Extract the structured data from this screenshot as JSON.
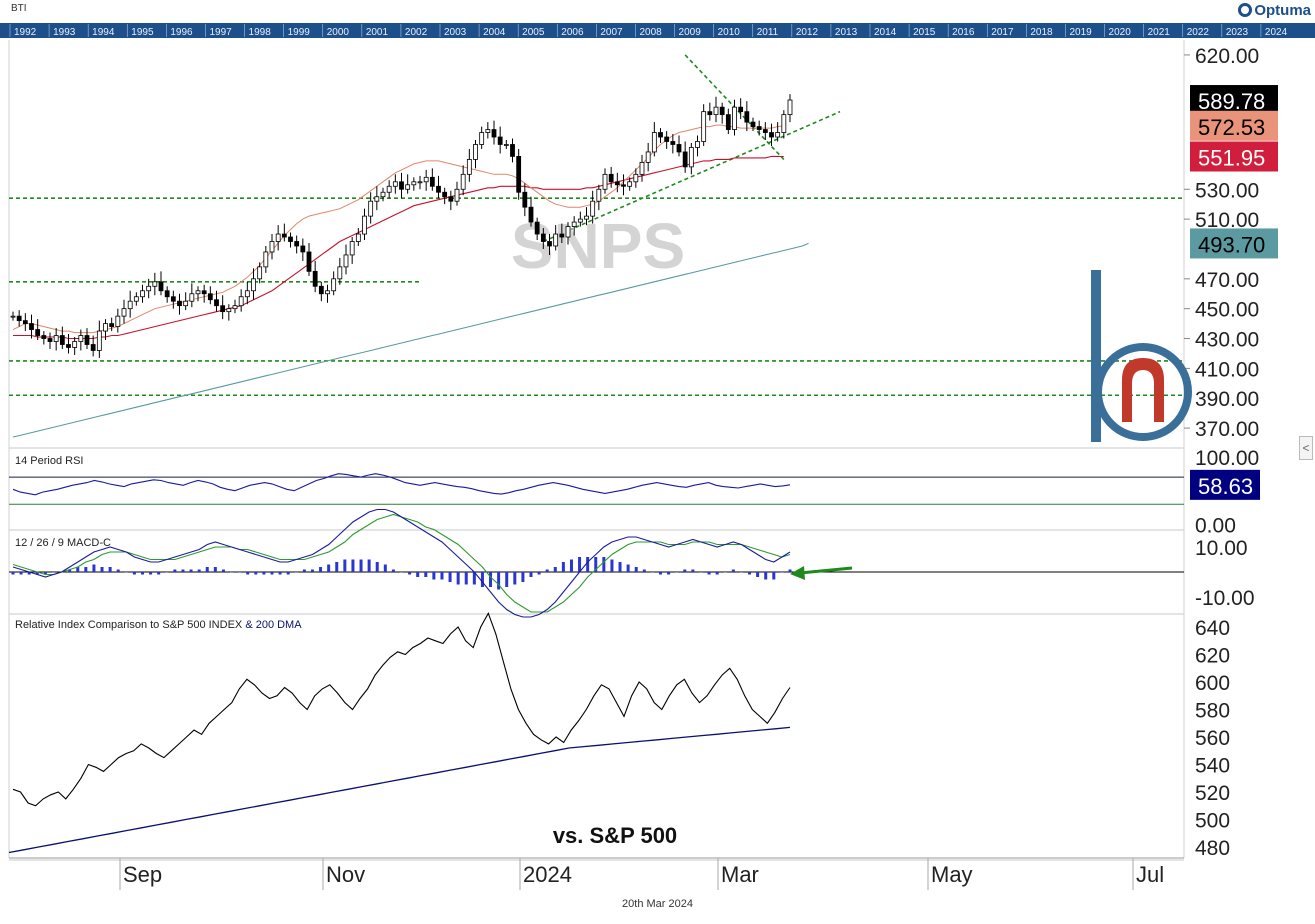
{
  "top_label": "BTI",
  "brand": "Optuma",
  "timeline_years": [
    "1992",
    "1993",
    "1994",
    "1995",
    "1996",
    "1997",
    "1998",
    "1999",
    "2000",
    "2001",
    "2002",
    "2003",
    "2004",
    "2005",
    "2006",
    "2007",
    "2008",
    "2009",
    "2010",
    "2011",
    "2012",
    "2013",
    "2014",
    "2015",
    "2016",
    "2017",
    "2018",
    "2019",
    "2020",
    "2021",
    "2022",
    "2023",
    "2024"
  ],
  "footer_date": "20th Mar 2024",
  "watermark": "SNPS",
  "colors": {
    "timeline_bg": "#1d4f8a",
    "sma50": "#e0866a",
    "sma100": "#c8102e",
    "sma200": "#5a9aa0",
    "trend": "#1e8a1e",
    "rsi_line": "#1a1aa0",
    "macd_line": "#1a1aa0",
    "signal_line": "#2e9a2e",
    "hist": "#2a36d0",
    "rel_line": "#000000",
    "rel_ma": "#0a1070",
    "logo_blue": "#3a6f99",
    "logo_red": "#c0392b"
  },
  "chart_data": [
    {
      "type": "candlestick",
      "title": "SNPS",
      "y_ticks": [
        "620.00",
        "530.00",
        "510.00",
        "470.00",
        "450.00",
        "430.00",
        "410.00",
        "390.00",
        "370.00"
      ],
      "y_tick_values": [
        620,
        530,
        510,
        470,
        450,
        430,
        410,
        390,
        370
      ],
      "value_tags": [
        {
          "label": "589.78",
          "value": 589.78,
          "bg": "#000000",
          "fg": "#ffffff",
          "series": "close"
        },
        {
          "label": "572.53",
          "value": 572.53,
          "bg": "#e8937a",
          "fg": "#000000",
          "series": "sma50"
        },
        {
          "label": "551.95",
          "value": 551.95,
          "bg": "#d01e3c",
          "fg": "#ffffff",
          "series": "sma100"
        },
        {
          "label": "493.70",
          "value": 493.7,
          "bg": "#5a9aa0",
          "fg": "#000000",
          "series": "sma200"
        }
      ],
      "close": [
        445,
        442,
        440,
        436,
        432,
        430,
        428,
        432,
        426,
        424,
        428,
        432,
        426,
        422,
        435,
        440,
        438,
        445,
        450,
        455,
        458,
        462,
        465,
        468,
        462,
        458,
        455,
        452,
        455,
        460,
        462,
        460,
        456,
        452,
        448,
        450,
        452,
        458,
        462,
        470,
        478,
        488,
        495,
        500,
        498,
        495,
        492,
        488,
        475,
        465,
        460,
        462,
        470,
        478,
        486,
        495,
        500,
        512,
        522,
        525,
        528,
        532,
        535,
        530,
        533,
        535,
        535,
        538,
        532,
        528,
        525,
        522,
        530,
        540,
        550,
        560,
        568,
        570,
        565,
        560,
        560,
        552,
        528,
        518,
        508,
        500,
        495,
        492,
        500,
        498,
        505,
        508,
        510,
        512,
        522,
        530,
        540,
        535,
        533,
        532,
        535,
        540,
        548,
        555,
        568,
        565,
        562,
        560,
        555,
        545,
        558,
        562,
        582,
        580,
        585,
        580,
        570,
        585,
        582,
        575,
        572,
        570,
        568,
        565,
        568,
        580,
        589.78
      ],
      "sma50": [
        436,
        438,
        440,
        440,
        439,
        438,
        437,
        436,
        435,
        435,
        434,
        434,
        434,
        434,
        435,
        436,
        437,
        438,
        440,
        442,
        444,
        446,
        448,
        450,
        451,
        452,
        453,
        454,
        455,
        456,
        457,
        458,
        459,
        460,
        461,
        463,
        465,
        468,
        471,
        475,
        479,
        484,
        489,
        494,
        499,
        503,
        507,
        510,
        512,
        513,
        514,
        515,
        516,
        517,
        519,
        521,
        523,
        526,
        529,
        532,
        535,
        538,
        541,
        543,
        545,
        547,
        548,
        549,
        549,
        549,
        548,
        547,
        546,
        545,
        544,
        543,
        542,
        541,
        540,
        540,
        540,
        539,
        537,
        534,
        531,
        528,
        525,
        522,
        520,
        519,
        518,
        518,
        518,
        519,
        520,
        522,
        525,
        528,
        531,
        535,
        539,
        543,
        547,
        551,
        556,
        560,
        563,
        566,
        568,
        569,
        570,
        571,
        572,
        572,
        573,
        573,
        572,
        572,
        571,
        571,
        571,
        571,
        571,
        571,
        572,
        572.53
      ],
      "sma100": [
        432,
        432,
        432,
        432,
        431,
        431,
        431,
        431,
        431,
        430,
        430,
        430,
        430,
        430,
        431,
        431,
        432,
        432,
        433,
        434,
        435,
        436,
        437,
        438,
        439,
        440,
        441,
        442,
        443,
        444,
        445,
        446,
        447,
        448,
        449,
        450,
        451,
        452,
        454,
        456,
        458,
        460,
        462,
        465,
        468,
        471,
        474,
        477,
        480,
        483,
        486,
        489,
        492,
        495,
        497,
        499,
        501,
        503,
        505,
        507,
        509,
        511,
        513,
        515,
        517,
        519,
        520,
        521,
        522,
        523,
        524,
        525,
        526,
        527,
        528,
        529,
        530,
        531,
        531,
        532,
        532,
        532,
        532,
        532,
        531,
        531,
        530,
        530,
        530,
        530,
        530,
        530,
        530,
        531,
        531,
        532,
        533,
        534,
        535,
        536,
        537,
        538,
        539,
        540,
        541,
        542,
        543,
        544,
        545,
        546,
        547,
        548,
        549,
        549,
        550,
        550,
        550,
        551,
        551,
        551,
        551,
        551,
        551,
        552,
        552,
        551.95
      ],
      "sma200": [
        364,
        365,
        366,
        367,
        368,
        369,
        370,
        371,
        372,
        373,
        374,
        375,
        376,
        377,
        378,
        379,
        380,
        381,
        382,
        383,
        384,
        385,
        386,
        387,
        388,
        389,
        390,
        391,
        392,
        393,
        394,
        395,
        396,
        397,
        398,
        399,
        400,
        401,
        402,
        403,
        404,
        405,
        406,
        407,
        408,
        409,
        410,
        411,
        412,
        413,
        414,
        415,
        416,
        417,
        418,
        419,
        420,
        421,
        422,
        423,
        424,
        425,
        426,
        427,
        428,
        429,
        430,
        431,
        432,
        433,
        434,
        435,
        436,
        437,
        438,
        439,
        440,
        441,
        442,
        443,
        444,
        445,
        446,
        447,
        448,
        449,
        450,
        451,
        452,
        453,
        454,
        455,
        456,
        457,
        458,
        459,
        460,
        461,
        462,
        463,
        464,
        465,
        466,
        467,
        468,
        469,
        470,
        471,
        472,
        473,
        474,
        475,
        476,
        477,
        478,
        479,
        480,
        481,
        482,
        483,
        484,
        485,
        486,
        487,
        488,
        489,
        490,
        491,
        492,
        493.7
      ]
    },
    {
      "type": "line",
      "title": "14 Period RSI",
      "y_ticks": [
        "100.00",
        "0.00"
      ],
      "y_tick_values": [
        100,
        0
      ],
      "value_tags": [
        {
          "label": "58.63",
          "value": 58.63,
          "bg": "#000080",
          "fg": "#ffffff",
          "series": "rsi"
        }
      ],
      "levels": [
        70,
        30
      ],
      "values": [
        52,
        48,
        46,
        44,
        48,
        50,
        52,
        55,
        58,
        60,
        62,
        65,
        63,
        60,
        58,
        56,
        60,
        62,
        64,
        66,
        65,
        62,
        60,
        58,
        62,
        65,
        63,
        60,
        55,
        52,
        50,
        54,
        58,
        60,
        62,
        60,
        56,
        52,
        50,
        55,
        60,
        65,
        68,
        72,
        75,
        74,
        72,
        70,
        73,
        75,
        73,
        70,
        66,
        62,
        60,
        58,
        60,
        62,
        60,
        58,
        56,
        55,
        53,
        50,
        48,
        46,
        45,
        47,
        50,
        52,
        55,
        58,
        60,
        62,
        60,
        58,
        55,
        52,
        50,
        48,
        46,
        48,
        50,
        52,
        55,
        58,
        60,
        62,
        60,
        58,
        56,
        55,
        58,
        60,
        62,
        58,
        56,
        55,
        54,
        56,
        58,
        60,
        58,
        56,
        57,
        58.63
      ]
    },
    {
      "type": "bar+line",
      "title": "12 / 26 / 9 MACD-C",
      "y_ticks": [
        "10.00",
        "-10.00"
      ],
      "y_tick_values": [
        10,
        -10
      ],
      "macd": [
        2,
        1,
        0,
        -1,
        -2,
        -1,
        0,
        2,
        4,
        6,
        8,
        9,
        10,
        9,
        8,
        6,
        5,
        4,
        4,
        5,
        6,
        7,
        8,
        9,
        11,
        12,
        11,
        10,
        9,
        8,
        7,
        6,
        5,
        4,
        4,
        5,
        6,
        7,
        9,
        11,
        14,
        17,
        20,
        22,
        24,
        25,
        25,
        24,
        22,
        20,
        18,
        16,
        14,
        12,
        9,
        6,
        3,
        0,
        -4,
        -8,
        -12,
        -15,
        -17,
        -18,
        -18,
        -17,
        -15,
        -12,
        -8,
        -4,
        0,
        4,
        7,
        10,
        12,
        13,
        14,
        14,
        13,
        12,
        11,
        10,
        11,
        12,
        13,
        12,
        11,
        10,
        11,
        12,
        11,
        9,
        7,
        5,
        4,
        6,
        8
      ],
      "signal": [
        3,
        2,
        1,
        0,
        -1,
        -1,
        0,
        1,
        2,
        4,
        5,
        7,
        8,
        8,
        8,
        7,
        6,
        5,
        5,
        5,
        5,
        6,
        7,
        8,
        9,
        10,
        10,
        10,
        9,
        9,
        8,
        7,
        6,
        5,
        5,
        5,
        5,
        6,
        7,
        8,
        10,
        12,
        15,
        17,
        19,
        21,
        22,
        23,
        22,
        21,
        20,
        18,
        17,
        15,
        13,
        11,
        8,
        5,
        2,
        -2,
        -5,
        -9,
        -12,
        -14,
        -16,
        -16,
        -16,
        -14,
        -12,
        -9,
        -6,
        -2,
        1,
        4,
        7,
        9,
        11,
        12,
        12,
        12,
        12,
        11,
        11,
        11,
        12,
        12,
        12,
        11,
        11,
        11,
        11,
        10,
        9,
        8,
        7,
        6,
        7
      ]
    },
    {
      "type": "line",
      "title": "Relative Index Comparison to S&P 500 INDEX & 200 DMA",
      "title_main": "Relative Index Comparison to S&P 500 INDEX",
      "title_ma": "& 200 DMA",
      "annotation": "vs. S&P 500",
      "y_ticks": [
        "640",
        "620",
        "600",
        "580",
        "560",
        "540",
        "520",
        "500",
        "480"
      ],
      "y_tick_values": [
        640,
        620,
        600,
        580,
        560,
        540,
        520,
        500,
        480
      ],
      "values": [
        522,
        520,
        512,
        510,
        515,
        518,
        520,
        515,
        522,
        530,
        540,
        538,
        535,
        540,
        545,
        548,
        550,
        555,
        552,
        548,
        545,
        550,
        555,
        560,
        565,
        562,
        570,
        575,
        580,
        585,
        595,
        602,
        598,
        592,
        588,
        590,
        596,
        592,
        585,
        580,
        590,
        595,
        598,
        592,
        585,
        580,
        588,
        595,
        605,
        612,
        618,
        622,
        620,
        625,
        628,
        632,
        630,
        628,
        635,
        640,
        630,
        625,
        640,
        650,
        635,
        615,
        595,
        580,
        570,
        562,
        558,
        555,
        560,
        556,
        565,
        572,
        580,
        590,
        598,
        595,
        585,
        575,
        590,
        600,
        595,
        585,
        580,
        590,
        598,
        602,
        592,
        585,
        590,
        598,
        605,
        610,
        602,
        590,
        580,
        575,
        570,
        578,
        588,
        596
      ],
      "ma": [
        476,
        478,
        480,
        482,
        484,
        486,
        488,
        490,
        492,
        494,
        496,
        498,
        500,
        502,
        504,
        506,
        508,
        510,
        512,
        514,
        516,
        518,
        520,
        522,
        524,
        526,
        528,
        530,
        532,
        534,
        536,
        538,
        540,
        542,
        544,
        546,
        548,
        550,
        552,
        553,
        554,
        555,
        556,
        557,
        558,
        559,
        560,
        561,
        562,
        563,
        564,
        565,
        566,
        567
      ]
    }
  ],
  "x_axis": {
    "labels": [
      "Sep",
      "Nov",
      "2024",
      "Mar",
      "May",
      "Jul"
    ]
  }
}
